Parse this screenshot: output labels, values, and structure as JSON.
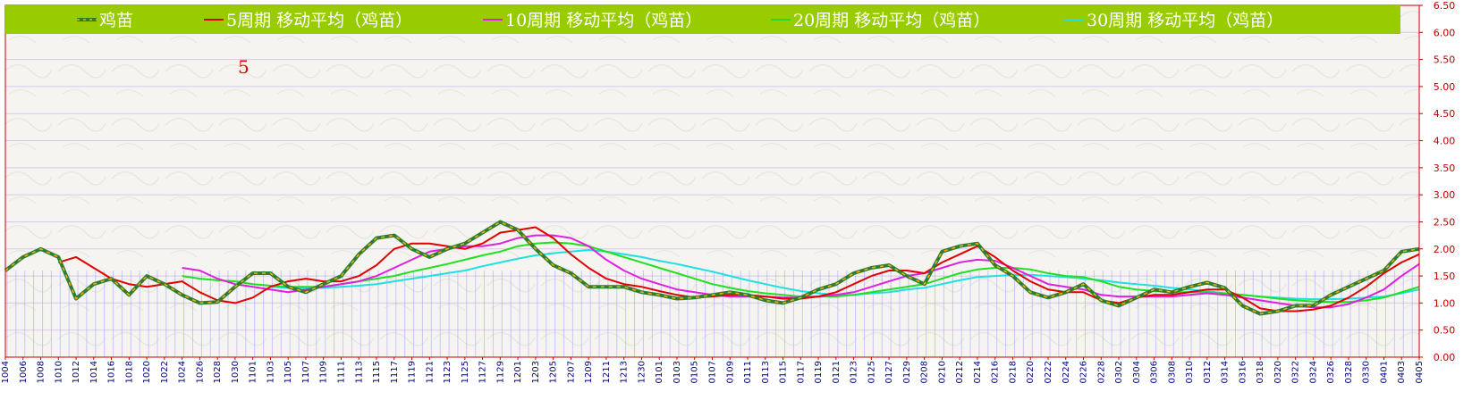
{
  "chart_data": {
    "type": "line",
    "y_axis": {
      "min": 0,
      "max": 6.5,
      "step": 0.5,
      "position": "right",
      "ticks": [
        "0.00",
        "0.50",
        "1.00",
        "1.50",
        "2.00",
        "2.50",
        "3.00",
        "3.50",
        "4.00",
        "4.50",
        "5.00",
        "5.50",
        "6.00",
        "6.50"
      ]
    },
    "x_categories": [
      "1004",
      "1006",
      "1008",
      "1010",
      "1012",
      "1014",
      "1016",
      "1018",
      "1020",
      "1022",
      "1024",
      "1026",
      "1028",
      "1030",
      "1101",
      "1103",
      "1105",
      "1107",
      "1109",
      "1111",
      "1113",
      "1115",
      "1117",
      "1119",
      "1121",
      "1123",
      "1125",
      "1127",
      "1129",
      "1201",
      "1203",
      "1205",
      "1207",
      "1209",
      "1211",
      "1213",
      "1230",
      "0101",
      "0103",
      "0105",
      "0107",
      "0109",
      "0111",
      "0113",
      "0115",
      "0117",
      "0119",
      "0121",
      "0123",
      "0125",
      "0127",
      "0129",
      "0208",
      "0210",
      "0212",
      "0214",
      "0216",
      "0218",
      "0220",
      "0222",
      "0224",
      "0226",
      "0228",
      "0302",
      "0304",
      "0306",
      "0308",
      "0310",
      "0312",
      "0314",
      "0316",
      "0318",
      "0320",
      "0322",
      "0324",
      "0326",
      "0328",
      "0330",
      "0401",
      "0403",
      "0405"
    ],
    "series": [
      {
        "name": "鸡苗",
        "color": "#2e7d32",
        "style": "dashed-green-orange",
        "values": [
          1.6,
          1.85,
          2.0,
          1.85,
          1.08,
          1.35,
          1.45,
          1.15,
          1.5,
          1.35,
          1.15,
          1.0,
          1.02,
          1.3,
          1.55,
          1.55,
          1.3,
          1.2,
          1.35,
          1.5,
          1.9,
          2.2,
          2.25,
          2.0,
          1.85,
          2.0,
          2.1,
          2.3,
          2.5,
          2.35,
          2.0,
          1.7,
          1.55,
          1.3,
          1.3,
          1.3,
          1.2,
          1.15,
          1.08,
          1.1,
          1.15,
          1.2,
          1.15,
          1.05,
          1.0,
          1.1,
          1.25,
          1.35,
          1.55,
          1.65,
          1.7,
          1.5,
          1.35,
          1.95,
          2.05,
          2.1,
          1.7,
          1.5,
          1.2,
          1.1,
          1.2,
          1.35,
          1.05,
          0.95,
          1.1,
          1.25,
          1.2,
          1.3,
          1.38,
          1.28,
          0.95,
          0.8,
          0.85,
          0.95,
          0.95,
          1.15,
          1.3,
          1.45,
          1.6,
          1.95,
          2.0
        ]
      },
      {
        "name": "5周期 移动平均（鸡苗）",
        "color": "#e00000",
        "values": [
          null,
          null,
          null,
          1.75,
          1.85,
          1.65,
          1.45,
          1.35,
          1.3,
          1.35,
          1.4,
          1.2,
          1.05,
          1.0,
          1.1,
          1.3,
          1.4,
          1.45,
          1.4,
          1.4,
          1.5,
          1.7,
          2.0,
          2.1,
          2.1,
          2.05,
          2.0,
          2.1,
          2.3,
          2.35,
          2.4,
          2.2,
          1.9,
          1.65,
          1.45,
          1.35,
          1.3,
          1.22,
          1.15,
          1.1,
          1.12,
          1.15,
          1.15,
          1.12,
          1.08,
          1.08,
          1.12,
          1.2,
          1.35,
          1.5,
          1.6,
          1.6,
          1.55,
          1.75,
          1.9,
          2.05,
          1.85,
          1.6,
          1.4,
          1.25,
          1.2,
          1.2,
          1.05,
          1.0,
          1.1,
          1.15,
          1.15,
          1.2,
          1.25,
          1.25,
          1.1,
          0.9,
          0.85,
          0.85,
          0.88,
          0.95,
          1.1,
          1.3,
          1.55,
          1.75,
          1.9
        ]
      },
      {
        "name": "10周期 移动平均（鸡苗）",
        "color": "#e020e0",
        "values": [
          null,
          null,
          null,
          null,
          null,
          null,
          null,
          null,
          null,
          null,
          1.65,
          1.6,
          1.45,
          1.35,
          1.3,
          1.25,
          1.2,
          1.25,
          1.3,
          1.35,
          1.4,
          1.5,
          1.65,
          1.8,
          1.95,
          2.0,
          2.05,
          2.05,
          2.1,
          2.2,
          2.25,
          2.25,
          2.2,
          2.05,
          1.8,
          1.6,
          1.45,
          1.35,
          1.25,
          1.2,
          1.15,
          1.12,
          1.12,
          1.12,
          1.1,
          1.1,
          1.12,
          1.15,
          1.2,
          1.3,
          1.4,
          1.5,
          1.55,
          1.65,
          1.75,
          1.8,
          1.78,
          1.65,
          1.5,
          1.35,
          1.3,
          1.25,
          1.15,
          1.12,
          1.12,
          1.12,
          1.12,
          1.15,
          1.18,
          1.15,
          1.1,
          1.05,
          1.0,
          0.95,
          0.92,
          0.92,
          0.98,
          1.1,
          1.25,
          1.5,
          1.72
        ]
      },
      {
        "name": "20周期 移动平均（鸡苗）",
        "color": "#20e020",
        "values": [
          null,
          null,
          null,
          null,
          null,
          null,
          null,
          null,
          null,
          null,
          1.5,
          1.45,
          1.42,
          1.4,
          1.35,
          1.32,
          1.3,
          1.3,
          1.3,
          1.35,
          1.4,
          1.45,
          1.5,
          1.58,
          1.65,
          1.72,
          1.8,
          1.88,
          1.95,
          2.05,
          2.1,
          2.12,
          2.1,
          2.05,
          1.95,
          1.85,
          1.75,
          1.65,
          1.55,
          1.45,
          1.35,
          1.28,
          1.22,
          1.18,
          1.15,
          1.12,
          1.12,
          1.12,
          1.15,
          1.2,
          1.25,
          1.3,
          1.35,
          1.45,
          1.55,
          1.62,
          1.65,
          1.65,
          1.62,
          1.55,
          1.5,
          1.48,
          1.4,
          1.3,
          1.25,
          1.22,
          1.2,
          1.2,
          1.2,
          1.18,
          1.15,
          1.12,
          1.08,
          1.05,
          1.03,
          1.02,
          1.02,
          1.05,
          1.1,
          1.2,
          1.3
        ]
      },
      {
        "name": "30周期 移动平均（鸡苗）",
        "color": "#20e0e0",
        "values": [
          null,
          null,
          null,
          null,
          null,
          null,
          null,
          null,
          null,
          null,
          null,
          null,
          null,
          null,
          null,
          1.3,
          1.28,
          1.28,
          1.28,
          1.3,
          1.32,
          1.35,
          1.4,
          1.45,
          1.5,
          1.55,
          1.6,
          1.68,
          1.75,
          1.82,
          1.88,
          1.92,
          1.95,
          1.98,
          1.95,
          1.9,
          1.85,
          1.78,
          1.72,
          1.65,
          1.58,
          1.5,
          1.42,
          1.35,
          1.28,
          1.22,
          1.18,
          1.15,
          1.15,
          1.18,
          1.2,
          1.25,
          1.28,
          1.35,
          1.42,
          1.48,
          1.5,
          1.52,
          1.52,
          1.5,
          1.48,
          1.45,
          1.42,
          1.38,
          1.35,
          1.32,
          1.28,
          1.25,
          1.22,
          1.18,
          1.15,
          1.12,
          1.1,
          1.08,
          1.07,
          1.07,
          1.08,
          1.1,
          1.12,
          1.18,
          1.25
        ]
      }
    ],
    "annotation": "5",
    "grid": true,
    "legend_position": "top"
  },
  "colors": {
    "legend_band": "#99cc00",
    "frame": "#c00000",
    "gridline": "#d8c8e8",
    "volume_bar": "#a0a0ff"
  }
}
